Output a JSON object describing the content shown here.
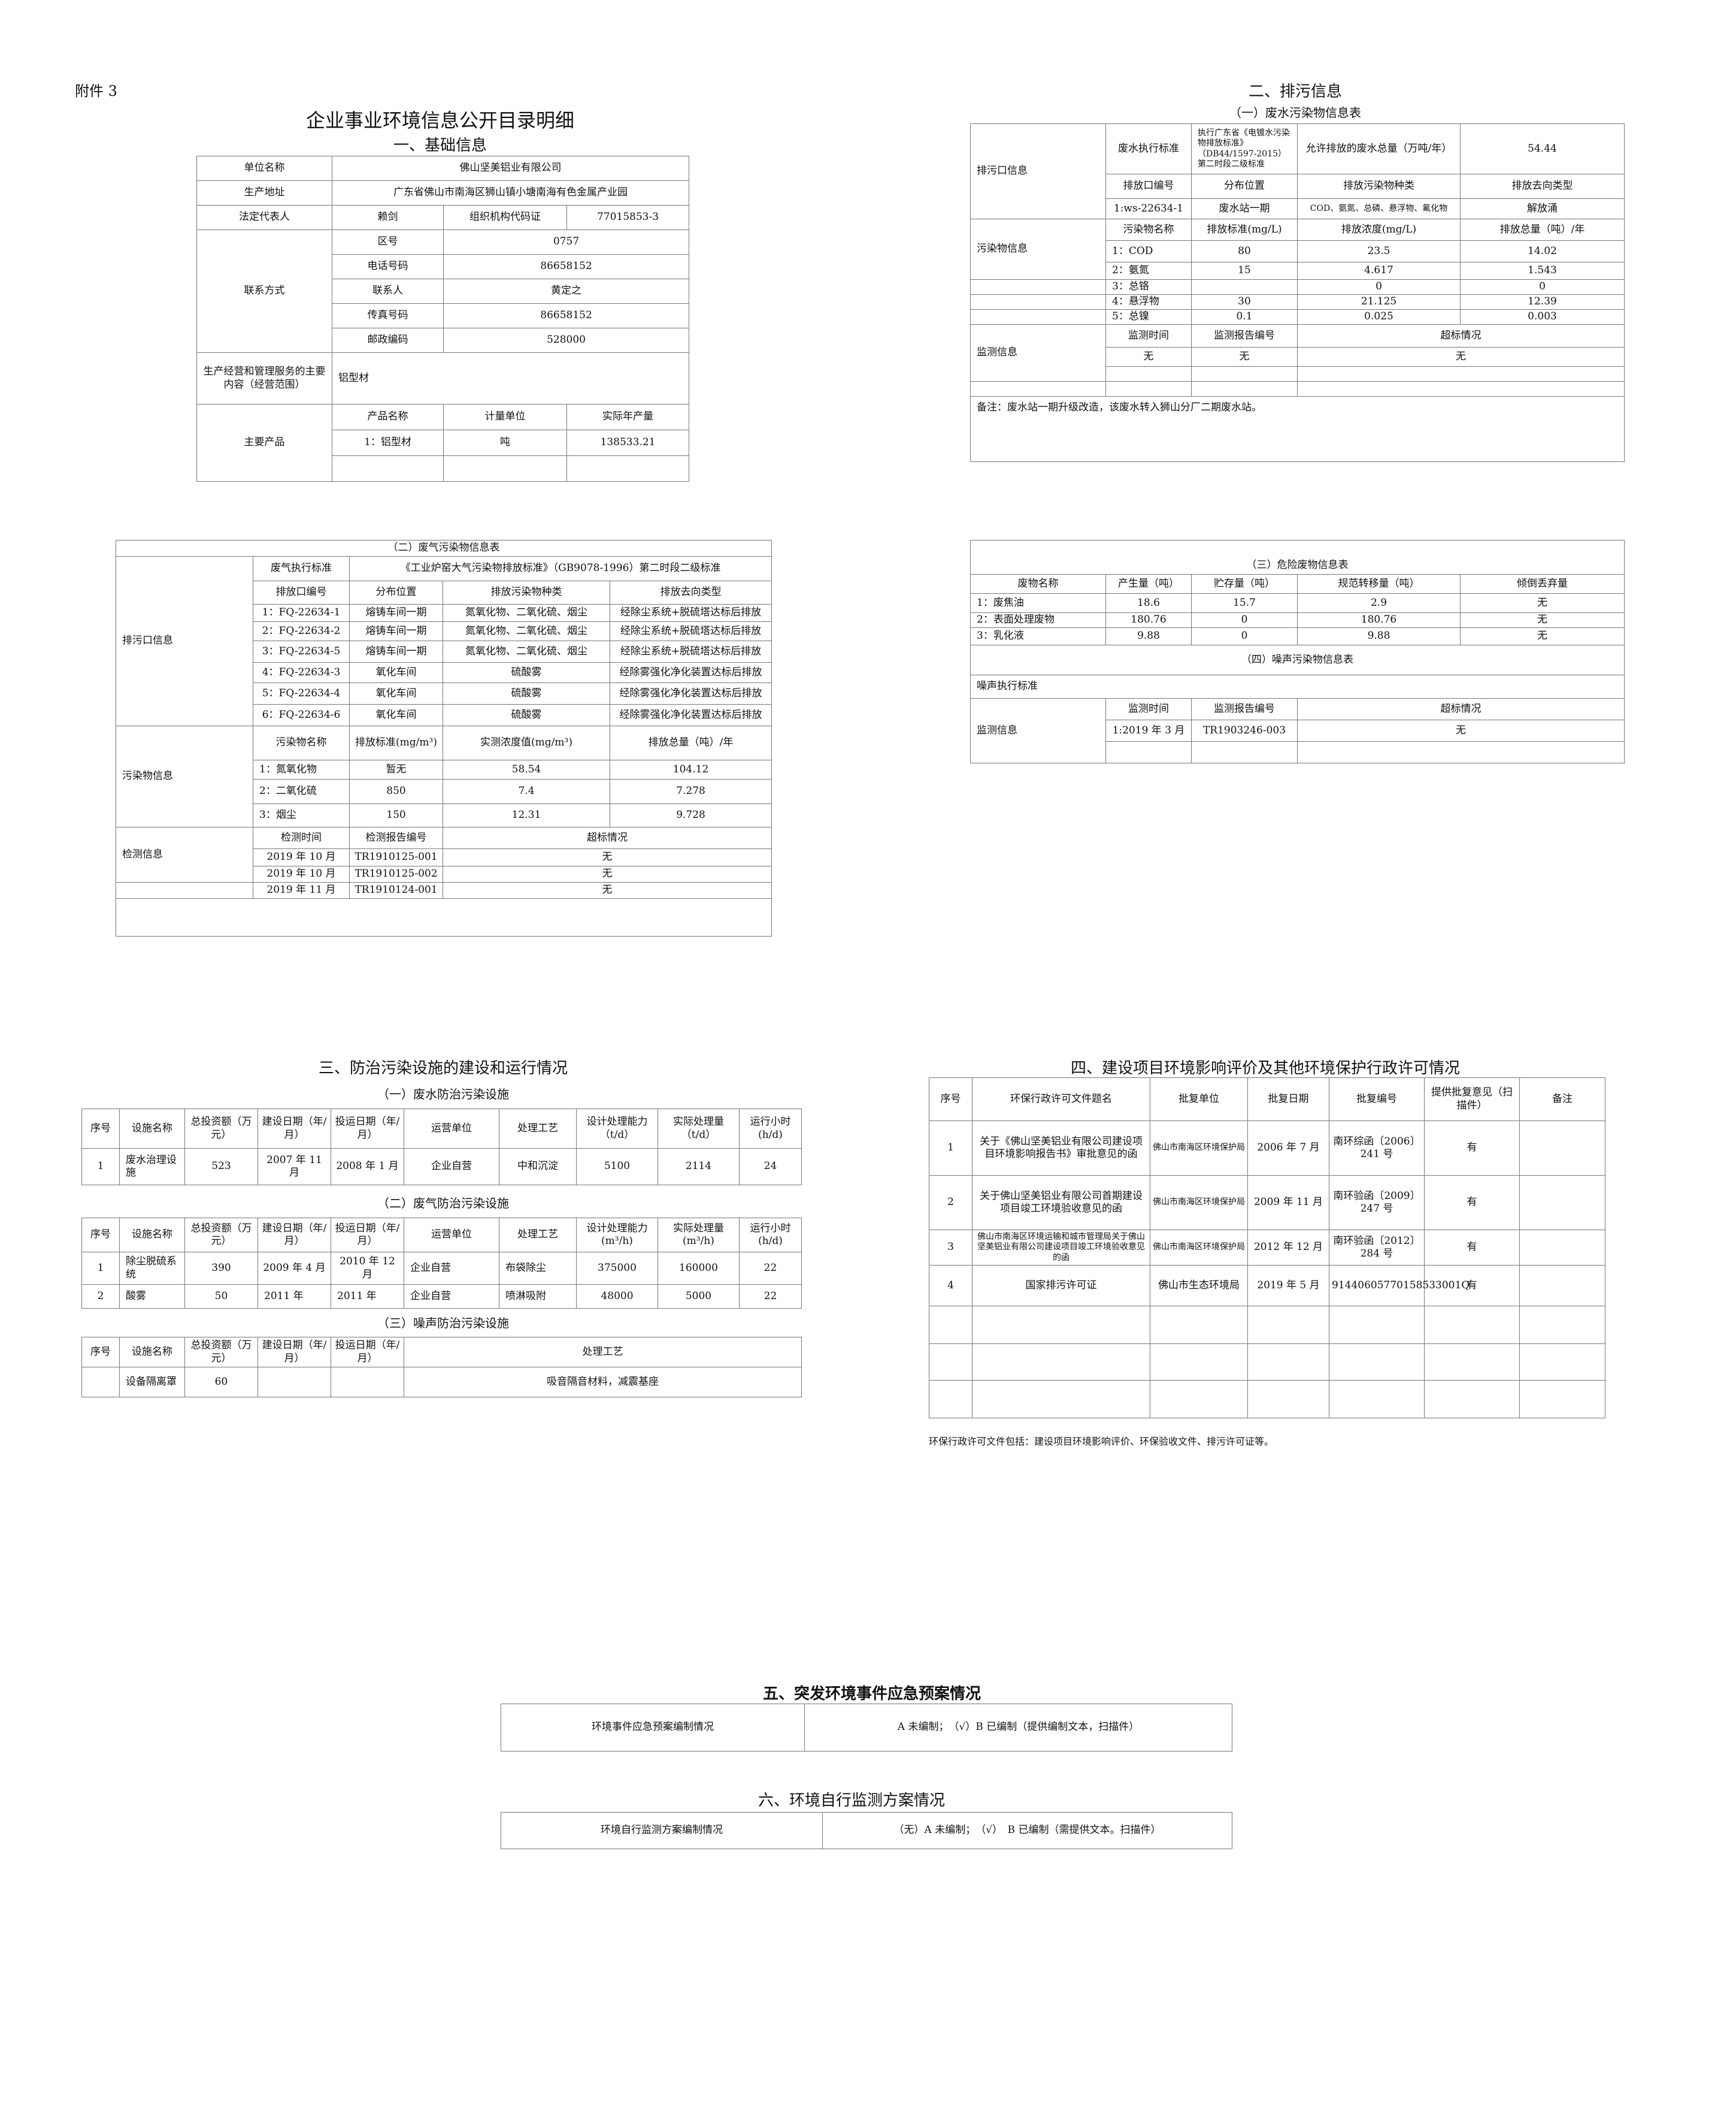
{
  "header": {
    "attachment": "附件 3",
    "title": "企业事业环境信息公开目录明细"
  },
  "basic": {
    "heading": "一、基础信息",
    "rows": [
      [
        "单位名称",
        "佛山坚美铝业有限公司"
      ],
      [
        "生产地址",
        "广东省佛山市南海区狮山镇小塘南海有色金属产业园"
      ],
      [
        "法定代表人",
        "赖剑",
        "组织机构代码证",
        "77015853-3"
      ],
      [
        "联系方式",
        "区号",
        "0757"
      ],
      [
        "电话号码",
        "86658152"
      ],
      [
        "联系人",
        "黄定之"
      ],
      [
        "传真号码",
        "86658152"
      ],
      [
        "邮政编码",
        "528000"
      ],
      [
        "生产经营和管理服务的主要内容（经营范围）",
        "铝型材"
      ],
      [
        "主要产品",
        "产品名称",
        "计量单位",
        "实际年产量"
      ],
      [
        "1：铝型材",
        "吨",
        "138533.21"
      ],
      [
        "",
        "",
        ""
      ]
    ]
  },
  "discharge": {
    "heading": "二、排污信息",
    "water_subtitle": "（一）废水污染物信息表",
    "water_rows": [
      [
        "排污口信息",
        "废水执行标准",
        "执行广东省《电镀水污染物排放标准》（DB44/1597-2015）第二时段二级标准",
        "允许排放的废水总量（万吨/年）",
        "54.44"
      ],
      [
        "排放口编号",
        "分布位置",
        "排放污染物种类",
        "排放去向类型"
      ],
      [
        "1:ws-22634-1",
        "废水站一期",
        "COD、氨氮、总磷、悬浮物、氟化物",
        "解放涌"
      ],
      [
        "污染物信息",
        "污染物名称",
        "排放标准(mg/L)",
        "排放浓度(mg/L)",
        "排放总量（吨）/年"
      ],
      [
        "1：COD",
        "80",
        "23.5",
        "14.02"
      ],
      [
        "2：氨氮",
        "15",
        "4.617",
        "1.543"
      ],
      [
        "",
        "3：总铬",
        "",
        "0",
        "0"
      ],
      [
        "",
        "4：悬浮物",
        "30",
        "21.125",
        "12.39"
      ],
      [
        "",
        "5：总镍",
        "0.1",
        "0.025",
        "0.003"
      ],
      [
        "监测信息",
        "监测时间",
        "监测报告编号",
        "超标情况"
      ],
      [
        "无",
        "无",
        "无"
      ],
      [
        "",
        "",
        ""
      ],
      [
        "",
        "",
        "",
        ""
      ],
      [
        "备注：废水站一期升级改造，该废水转入狮山分厂二期废水站。"
      ]
    ],
    "gas_rows": [
      [
        "（二）废气污染物信息表"
      ],
      [
        "排污口信息",
        "废气执行标准",
        "《工业炉窑大气污染物排放标准》（GB9078-1996）第二时段二级标准"
      ],
      [
        "排放口编号",
        "分布位置",
        "排放污染物种类",
        "排放去向类型"
      ],
      [
        "1：FQ-22634-1",
        "熔铸车间一期",
        "氮氧化物、二氧化硫、烟尘",
        "经除尘系统+脱硫塔达标后排放"
      ],
      [
        "2：FQ-22634-2",
        "熔铸车间一期",
        "氮氧化物、二氧化硫、烟尘",
        "经除尘系统+脱硫塔达标后排放"
      ],
      [
        "3：FQ-22634-5",
        "熔铸车间一期",
        "氮氧化物、二氧化硫、烟尘",
        "经除尘系统+脱硫塔达标后排放"
      ],
      [
        "4：FQ-22634-3",
        "氧化车间",
        "硫酸雾",
        "经除雾强化净化装置达标后排放"
      ],
      [
        "5：FQ-22634-4",
        "氧化车间",
        "硫酸雾",
        "经除雾强化净化装置达标后排放"
      ],
      [
        "6：FQ-22634-6",
        "氧化车间",
        "硫酸雾",
        "经除雾强化净化装置达标后排放"
      ],
      [
        "污染物信息",
        "污染物名称",
        "排放标准(mg/m³)",
        "实测浓度值(mg/m³)",
        "排放总量（吨）/年"
      ],
      [
        "1：氮氧化物",
        "暂无",
        "58.54",
        "104.12"
      ],
      [
        "2：二氧化硫",
        "850",
        "7.4",
        "7.278"
      ],
      [
        "3：烟尘",
        "150",
        "12.31",
        "9.728"
      ],
      [
        "检测信息",
        "检测时间",
        "检测报告编号",
        "超标情况"
      ],
      [
        "2019 年 10 月",
        "TR1910125-001",
        "无"
      ],
      [
        "2019 年 10 月",
        "TR1910125-002",
        "无"
      ],
      [
        "",
        "2019 年 11 月",
        "TR1910124-001",
        "无"
      ],
      [
        ""
      ]
    ],
    "hazard_rows": [
      [
        "（三）危险废物信息表"
      ],
      [
        "废物名称",
        "产生量（吨）",
        "贮存量（吨）",
        "规范转移量（吨）",
        "倾倒丢弃量"
      ],
      [
        "1：废焦油",
        "18.6",
        "15.7",
        "2.9",
        "无"
      ],
      [
        "2：表面处理废物",
        "180.76",
        "0",
        "180.76",
        "无"
      ],
      [
        "3：乳化液",
        "9.88",
        "0",
        "9.88",
        "无"
      ],
      [
        "（四）噪声污染物信息表"
      ],
      [
        "噪声执行标准"
      ],
      [
        "监测信息",
        "监测时间",
        "监测报告编号",
        "超标情况"
      ],
      [
        "1:2019 年 3 月",
        "TR1903246-003",
        "无"
      ],
      [
        "",
        "",
        ""
      ]
    ]
  },
  "facilities": {
    "heading": "三、防治污染设施的建设和运行情况",
    "water_subtitle": "（一）废水防治污染设施",
    "water_rows": [
      [
        "序号",
        "设施名称",
        "总投资额（万元）",
        "建设日期（年/月）",
        "投运日期（年/月）",
        "运营单位",
        "处理工艺",
        "设计处理能力（t/d）",
        "实际处理量（t/d）",
        "运行小时(h/d)"
      ],
      [
        "1",
        "废水治理设施",
        "523",
        "2007 年 11 月",
        "2008 年 1 月",
        "企业自营",
        "中和沉淀",
        "5100",
        "2114",
        "24"
      ]
    ],
    "gas_subtitle": "（二）废气防治污染设施",
    "gas_rows": [
      [
        "序号",
        "设施名称",
        "总投资额（万元）",
        "建设日期（年/月）",
        "投运日期（年/月）",
        "运营单位",
        "处理工艺",
        "设计处理能力(m³/h)",
        "实际处理量(m³/h)",
        "运行小时(h/d)"
      ],
      [
        "1",
        "除尘脱硫系统",
        "390",
        "2009 年 4 月",
        "2010 年 12 月",
        "企业自营",
        "布袋除尘",
        "375000",
        "160000",
        "22"
      ],
      [
        "2",
        "酸雾",
        "50",
        "2011 年",
        "2011 年",
        "企业自营",
        "喷淋吸附",
        "48000",
        "5000",
        "22"
      ]
    ],
    "noise_subtitle": "（三）噪声防治污染设施",
    "noise_rows": [
      [
        "序号",
        "设施名称",
        "总投资额（万元）",
        "建设日期（年/月）",
        "投运日期（年/月）",
        "处理工艺"
      ],
      [
        "",
        "设备隔离罩",
        "60",
        "",
        "",
        "吸音隔音材料，减震基座"
      ]
    ]
  },
  "permits": {
    "heading": "四、建设项目环境影响评价及其他环境保护行政许可情况",
    "rows": [
      [
        "序号",
        "环保行政许可文件题名",
        "批复单位",
        "批复日期",
        "批复编号",
        "提供批复意见（扫描件）",
        "备注"
      ],
      [
        "1",
        "关于《佛山坚美铝业有限公司建设项目环境影响报告书》审批意见的函",
        "佛山市南海区环境保护局",
        "2006 年 7 月",
        "南环综函〔2006〕241 号",
        "有",
        ""
      ],
      [
        "2",
        "关于佛山坚美铝业有限公司首期建设项目竣工环境验收意见的函",
        "佛山市南海区环境保护局",
        "2009 年 11 月",
        "南环验函〔2009〕247 号",
        "有",
        ""
      ],
      [
        "3",
        "佛山市南海区环境运输和城市管理局关于佛山坚美铝业有限公司建设项目竣工环境验收意见的函",
        "佛山市南海区环境保护局",
        "2012 年 12 月",
        "南环验函〔2012〕284 号",
        "有",
        ""
      ],
      [
        "4",
        "国家排污许可证",
        "佛山市生态环境局",
        "2019 年 5 月",
        "91440605770158533001Q",
        "有",
        ""
      ],
      [
        "",
        "",
        "",
        "",
        "",
        "",
        ""
      ],
      [
        "",
        "",
        "",
        "",
        "",
        "",
        ""
      ],
      [
        "",
        "",
        "",
        "",
        "",
        "",
        ""
      ]
    ],
    "note": "环保行政许可文件包括：建设项目环境影响评价、环保验收文件、排污许可证等。"
  },
  "emergency": {
    "heading": "五、突发环境事件应急预案情况",
    "rows": [
      [
        "环境事件应急预案编制情况",
        "A 未编制；　（√）B 已编制（提供编制文本，扫描件）"
      ]
    ]
  },
  "monitoring": {
    "heading": "六、环境自行监测方案情况",
    "rows": [
      [
        "环境自行监测方案编制情况",
        "（无）A 未编制；　（√）　B 已编制（需提供文本。扫描件）"
      ]
    ]
  }
}
